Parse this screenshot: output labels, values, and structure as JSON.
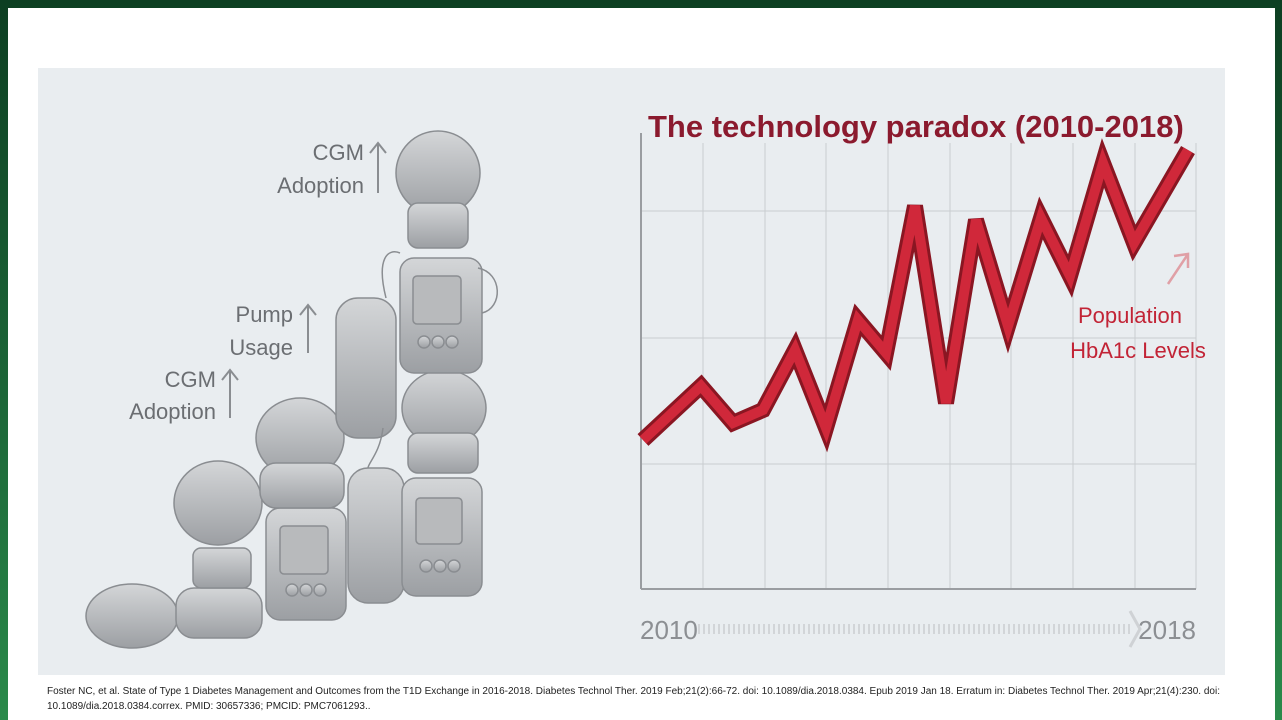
{
  "slide": {
    "chart_title": "The technology paradox (2010-2018)",
    "labels": [
      [
        "CGM",
        "Adoption"
      ],
      [
        "Pump",
        "Usage"
      ],
      [
        "CGM",
        "Adoption"
      ]
    ],
    "series_label": [
      "Population",
      "HbA1c Levels"
    ],
    "x_start": "2010",
    "x_end": "2018",
    "citation": "Foster NC, et al. State of Type 1 Diabetes Management and Outcomes from the T1D Exchange in 2016-2018. Diabetes Technol Ther. 2019 Feb;21(2):66-72. doi: 10.1089/dia.2018.0384. Epub 2019 Jan 18. Erratum in: Diabetes Technol Ther. 2019 Apr;21(4):230. doi: 10.1089/dia.2018.0384.correx. PMID: 30657336; PMCID: PMC7061293.."
  }
}
